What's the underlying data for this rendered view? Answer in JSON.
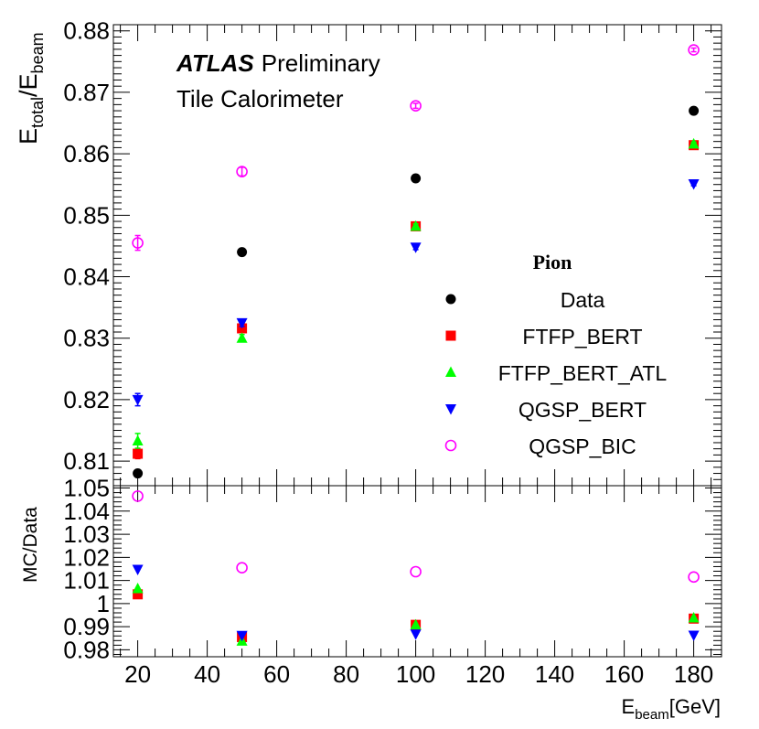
{
  "chart_data": [
    {
      "type": "scatter",
      "panel": "main",
      "ylabel_main": "E",
      "ylabel_sub1": "total",
      "ylabel_sep": "/E",
      "ylabel_sub2": "beam",
      "ylim": [
        0.806,
        0.881
      ],
      "xlim": [
        13,
        188
      ],
      "yticks": [
        {
          "v": 0.81,
          "label": "0.81"
        },
        {
          "v": 0.82,
          "label": "0.82"
        },
        {
          "v": 0.83,
          "label": "0.83"
        },
        {
          "v": 0.84,
          "label": "0.84"
        },
        {
          "v": 0.85,
          "label": "0.85"
        },
        {
          "v": 0.86,
          "label": "0.86"
        },
        {
          "v": 0.87,
          "label": "0.87"
        },
        {
          "v": 0.88,
          "label": "0.88"
        }
      ],
      "x": [
        20,
        50,
        100,
        180
      ],
      "series": [
        {
          "name": "Data",
          "marker": "circle-filled",
          "color": "#000000",
          "values": [
            0.808,
            0.844,
            0.856,
            0.867
          ],
          "errors": [
            0.0002,
            0.0002,
            0.0002,
            0.0002
          ]
        },
        {
          "name": "FTFP_BERT",
          "marker": "square-filled",
          "color": "#ff0000",
          "values": [
            0.8112,
            0.8316,
            0.8482,
            0.8614
          ],
          "errors": [
            0.0008,
            0.0006,
            0.0004,
            0.0003
          ]
        },
        {
          "name": "FTFP_BERT_ATL",
          "marker": "triangle-up",
          "color": "#00ff00",
          "values": [
            0.8133,
            0.83,
            0.8482,
            0.8616
          ],
          "errors": [
            0.0012,
            0.0006,
            0.0004,
            0.0003
          ]
        },
        {
          "name": "QGSP_BERT",
          "marker": "triangle-down",
          "color": "#0000ff",
          "values": [
            0.82,
            0.8325,
            0.8448,
            0.8551
          ],
          "errors": [
            0.001,
            0.0006,
            0.0004,
            0.0003
          ]
        },
        {
          "name": "QGSP_BIC",
          "marker": "circle-open",
          "color": "#ff00ff",
          "values": [
            0.8455,
            0.8571,
            0.8678,
            0.8769
          ],
          "errors": [
            0.0012,
            0.0007,
            0.0004,
            0.0003
          ]
        }
      ],
      "annotations": {
        "atlas": "ATLAS",
        "preliminary": "Preliminary",
        "detector": "Tile Calorimeter"
      },
      "legend": {
        "title": "Pion",
        "placement": "right-middle"
      }
    },
    {
      "type": "scatter",
      "panel": "ratio",
      "ylabel": "MC/Data",
      "ylim": [
        0.977,
        1.051
      ],
      "xlim": [
        13,
        188
      ],
      "yticks": [
        {
          "v": 0.98,
          "label": "0.98"
        },
        {
          "v": 0.99,
          "label": "0.99"
        },
        {
          "v": 1.0,
          "label": "1"
        },
        {
          "v": 1.01,
          "label": "1.01"
        },
        {
          "v": 1.02,
          "label": "1.02"
        },
        {
          "v": 1.03,
          "label": "1.03"
        },
        {
          "v": 1.04,
          "label": "1.04"
        },
        {
          "v": 1.05,
          "label": "1.05"
        }
      ],
      "xticks": [
        {
          "v": 20,
          "label": "20"
        },
        {
          "v": 40,
          "label": "40"
        },
        {
          "v": 60,
          "label": "60"
        },
        {
          "v": 80,
          "label": "80"
        },
        {
          "v": 100,
          "label": "100"
        },
        {
          "v": 120,
          "label": "120"
        },
        {
          "v": 140,
          "label": "140"
        },
        {
          "v": 160,
          "label": "160"
        },
        {
          "v": 180,
          "label": "180"
        }
      ],
      "xlabel_main": "E",
      "xlabel_sub": "beam",
      "xlabel_unit": "[GeV]",
      "x": [
        20,
        50,
        100,
        180
      ],
      "series": [
        {
          "name": "FTFP_BERT",
          "marker": "square-filled",
          "color": "#ff0000",
          "values": [
            1.004,
            0.9855,
            0.9908,
            0.9935
          ]
        },
        {
          "name": "FTFP_BERT_ATL",
          "marker": "triangle-up",
          "color": "#00ff00",
          "values": [
            1.0065,
            0.9838,
            0.9908,
            0.9938
          ]
        },
        {
          "name": "QGSP_BERT",
          "marker": "triangle-down",
          "color": "#0000ff",
          "values": [
            1.0148,
            0.9862,
            0.9868,
            0.9863
          ]
        },
        {
          "name": "QGSP_BIC",
          "marker": "circle-open",
          "color": "#ff00ff",
          "values": [
            1.0465,
            1.0155,
            1.0138,
            1.0115
          ]
        }
      ]
    }
  ]
}
